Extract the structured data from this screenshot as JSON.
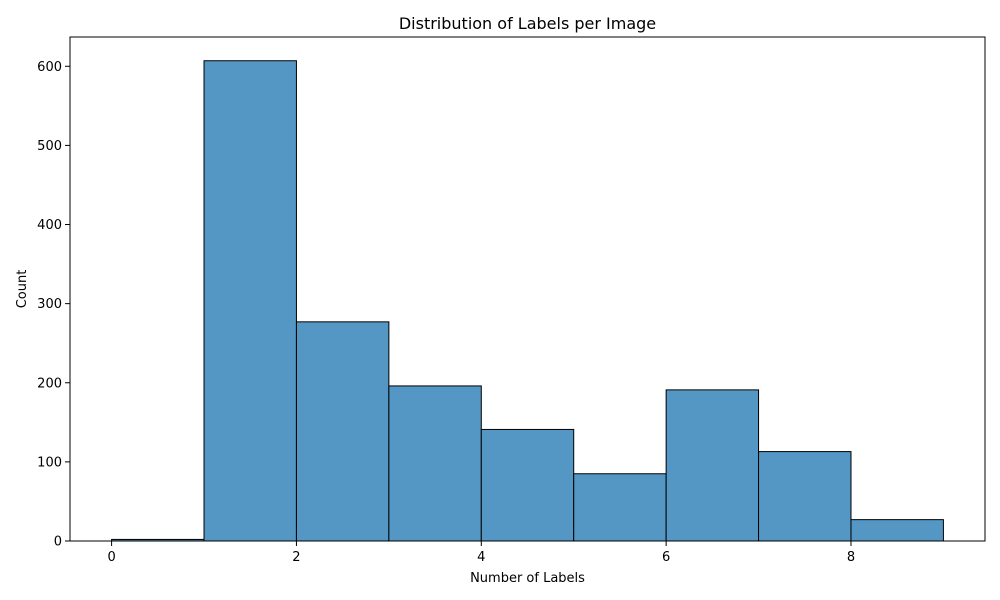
{
  "chart_data": {
    "type": "bar",
    "title": "Distribution of Labels per Image",
    "xlabel": "Number of Labels",
    "ylabel": "Count",
    "bins": [
      {
        "start": 0,
        "end": 1,
        "value": 2
      },
      {
        "start": 1,
        "end": 2,
        "value": 607
      },
      {
        "start": 2,
        "end": 3,
        "value": 277
      },
      {
        "start": 3,
        "end": 4,
        "value": 196
      },
      {
        "start": 4,
        "end": 5,
        "value": 141
      },
      {
        "start": 5,
        "end": 6,
        "value": 85
      },
      {
        "start": 6,
        "end": 7,
        "value": 191
      },
      {
        "start": 7,
        "end": 8,
        "value": 113
      },
      {
        "start": 8,
        "end": 9,
        "value": 27
      }
    ],
    "xlim": [
      -0.45,
      9.45
    ],
    "ylim": [
      0,
      637
    ],
    "xticks": [
      0,
      2,
      4,
      6,
      8
    ],
    "yticks": [
      0,
      100,
      200,
      300,
      400,
      500,
      600
    ],
    "bar_color": "#5497c5",
    "edge_color": "#000000",
    "grid": false,
    "legend": "none"
  }
}
